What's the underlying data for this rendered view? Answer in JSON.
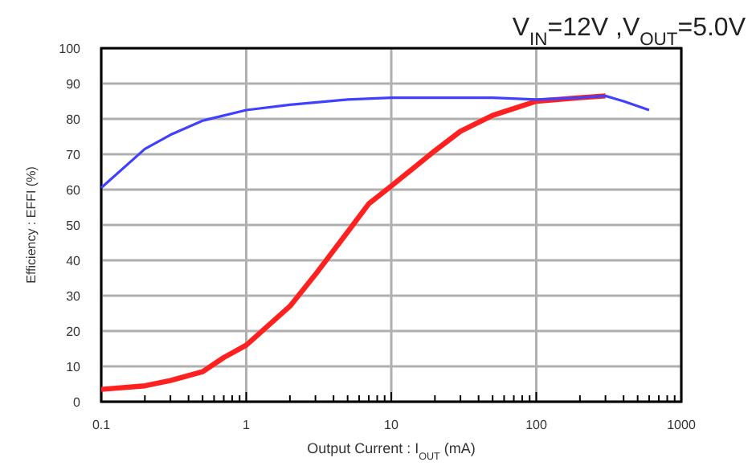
{
  "chart_data": {
    "type": "line",
    "title": "V$_{IN}$=12V ,V$_{OUT}$=5.0V",
    "xlabel": "Output Current : I$_{OUT}$ (mA)",
    "ylabel": "Efficiency : EFFI (%)",
    "log": "x",
    "grid": true,
    "xlim": [
      0.1,
      1000
    ],
    "ylim": [
      0,
      100
    ],
    "xticks": [
      0.1,
      {
        "value": 0.2,
        "label": null
      },
      {
        "value": 0.3,
        "label": null
      },
      {
        "value": 0.4,
        "label": null
      },
      {
        "value": 0.5,
        "label": null
      },
      {
        "value": 0.6,
        "label": null
      },
      {
        "value": 0.7,
        "label": null
      },
      {
        "value": 0.8,
        "label": null
      },
      {
        "value": 0.9,
        "label": null
      },
      1,
      {
        "value": 2,
        "label": null
      },
      {
        "value": 3,
        "label": null
      },
      {
        "value": 4,
        "label": null
      },
      {
        "value": 5,
        "label": null
      },
      {
        "value": 6,
        "label": null
      },
      {
        "value": 7,
        "label": null
      },
      {
        "value": 8,
        "label": null
      },
      {
        "value": 9,
        "label": null
      },
      10,
      {
        "value": 20,
        "label": null
      },
      {
        "value": 30,
        "label": null
      },
      {
        "value": 40,
        "label": null
      },
      {
        "value": 50,
        "label": null
      },
      {
        "value": 60,
        "label": null
      },
      {
        "value": 70,
        "label": null
      },
      {
        "value": 80,
        "label": null
      },
      {
        "value": 90,
        "label": null
      },
      100,
      {
        "value": 200,
        "label": null
      },
      {
        "value": 300,
        "label": null
      },
      {
        "value": 400,
        "label": null
      },
      {
        "value": 500,
        "label": null
      },
      {
        "value": 600,
        "label": null
      },
      {
        "value": 700,
        "label": null
      },
      {
        "value": 800,
        "label": null
      },
      {
        "value": 900,
        "label": null
      },
      1000
    ],
    "yticks": [
      0,
      10,
      20,
      30,
      40,
      50,
      60,
      70,
      80,
      90,
      100
    ],
    "series": [
      {
        "color": "#ff2020",
        "x": [
          0.1,
          0.2,
          0.3,
          0.5,
          0.7,
          1,
          2,
          3,
          5,
          7,
          10,
          20,
          30,
          50,
          100,
          200,
          300
        ],
        "values": [
          3.5,
          4.5,
          6,
          8.5,
          12.5,
          16,
          27,
          36,
          48,
          56,
          61,
          71,
          76.5,
          81,
          85,
          86,
          86.5
        ]
      },
      {
        "color": "#4040ff",
        "x": [
          0.1,
          0.2,
          0.3,
          0.5,
          1,
          2,
          5,
          10,
          50,
          100,
          200,
          300,
          400,
          600
        ],
        "values": [
          60.5,
          71.5,
          75.5,
          79.5,
          82.5,
          84,
          85.5,
          86,
          86,
          85.5,
          86,
          86.5,
          85,
          82.5
        ]
      }
    ]
  }
}
